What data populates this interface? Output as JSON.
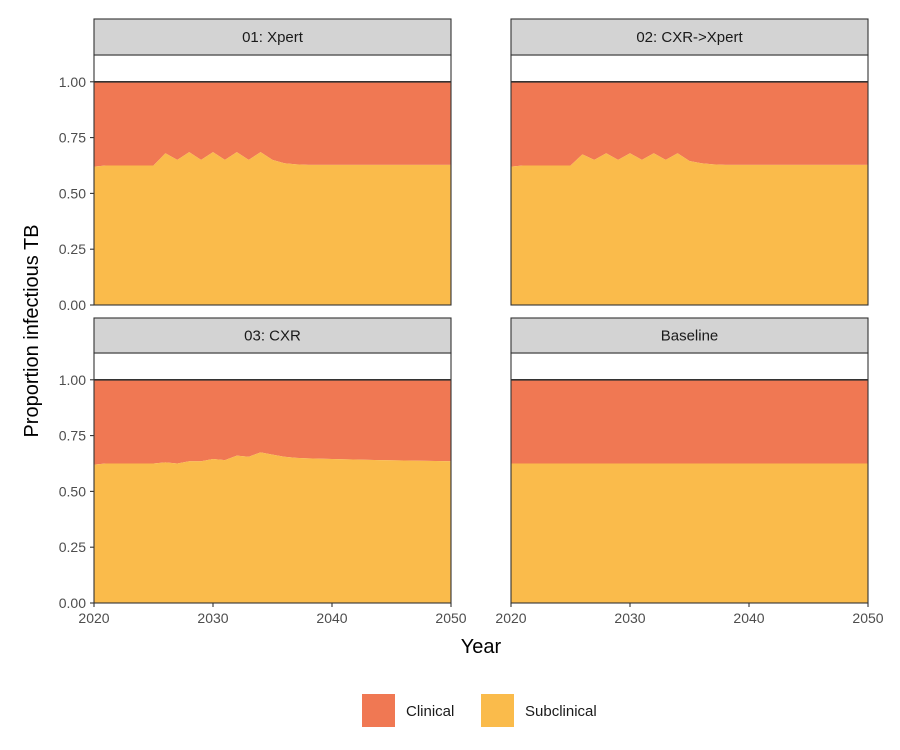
{
  "chart_data": {
    "type": "area",
    "stacked": true,
    "xlabel": "Year",
    "ylabel": "Proportion infectious TB",
    "xlim": [
      2020,
      2050
    ],
    "ylim": [
      0,
      1.12
    ],
    "xticks": [
      2020,
      2030,
      2040,
      2050
    ],
    "yticks": [
      0,
      0.25,
      0.5,
      0.75,
      1.0
    ],
    "ytick_labels": [
      "0.00",
      "0.25",
      "0.50",
      "0.75",
      "1.00"
    ],
    "reference_line_y": 1.0,
    "legend": {
      "position": "bottom",
      "entries": [
        {
          "name": "Clinical",
          "color": "#F07853"
        },
        {
          "name": "Subclinical",
          "color": "#FABB4B"
        }
      ]
    },
    "colors": {
      "clinical": "#F07853",
      "subclinical": "#FABB4B",
      "strip": "#D3D3D3"
    },
    "panels": [
      {
        "title": "01: Xpert",
        "subclinical": [
          [
            2020,
            0.62
          ],
          [
            2021,
            0.625
          ],
          [
            2022,
            0.625
          ],
          [
            2023,
            0.625
          ],
          [
            2024,
            0.625
          ],
          [
            2025,
            0.625
          ],
          [
            2026,
            0.68
          ],
          [
            2027,
            0.65
          ],
          [
            2028,
            0.685
          ],
          [
            2029,
            0.65
          ],
          [
            2030,
            0.685
          ],
          [
            2031,
            0.65
          ],
          [
            2032,
            0.685
          ],
          [
            2033,
            0.65
          ],
          [
            2034,
            0.685
          ],
          [
            2035,
            0.65
          ],
          [
            2036,
            0.635
          ],
          [
            2037,
            0.63
          ],
          [
            2038,
            0.628
          ],
          [
            2040,
            0.628
          ],
          [
            2045,
            0.628
          ],
          [
            2050,
            0.628
          ]
        ],
        "clinical_top": 1.0
      },
      {
        "title": "02: CXR->Xpert",
        "subclinical": [
          [
            2020,
            0.62
          ],
          [
            2021,
            0.625
          ],
          [
            2022,
            0.625
          ],
          [
            2023,
            0.625
          ],
          [
            2024,
            0.625
          ],
          [
            2025,
            0.625
          ],
          [
            2026,
            0.675
          ],
          [
            2027,
            0.65
          ],
          [
            2028,
            0.68
          ],
          [
            2029,
            0.65
          ],
          [
            2030,
            0.68
          ],
          [
            2031,
            0.65
          ],
          [
            2032,
            0.68
          ],
          [
            2033,
            0.65
          ],
          [
            2034,
            0.68
          ],
          [
            2035,
            0.645
          ],
          [
            2036,
            0.635
          ],
          [
            2037,
            0.63
          ],
          [
            2038,
            0.628
          ],
          [
            2040,
            0.628
          ],
          [
            2045,
            0.628
          ],
          [
            2050,
            0.628
          ]
        ],
        "clinical_top": 1.0
      },
      {
        "title": "03: CXR",
        "subclinical": [
          [
            2020,
            0.62
          ],
          [
            2021,
            0.625
          ],
          [
            2022,
            0.625
          ],
          [
            2023,
            0.625
          ],
          [
            2024,
            0.625
          ],
          [
            2025,
            0.625
          ],
          [
            2026,
            0.63
          ],
          [
            2027,
            0.625
          ],
          [
            2028,
            0.635
          ],
          [
            2029,
            0.635
          ],
          [
            2030,
            0.645
          ],
          [
            2031,
            0.64
          ],
          [
            2032,
            0.66
          ],
          [
            2033,
            0.655
          ],
          [
            2034,
            0.675
          ],
          [
            2035,
            0.665
          ],
          [
            2036,
            0.655
          ],
          [
            2037,
            0.65
          ],
          [
            2038,
            0.648
          ],
          [
            2040,
            0.645
          ],
          [
            2044,
            0.64
          ],
          [
            2050,
            0.635
          ]
        ],
        "clinical_top": 1.0
      },
      {
        "title": "Baseline",
        "subclinical": [
          [
            2020,
            0.625
          ],
          [
            2050,
            0.625
          ]
        ],
        "clinical_top": 1.0
      }
    ]
  }
}
